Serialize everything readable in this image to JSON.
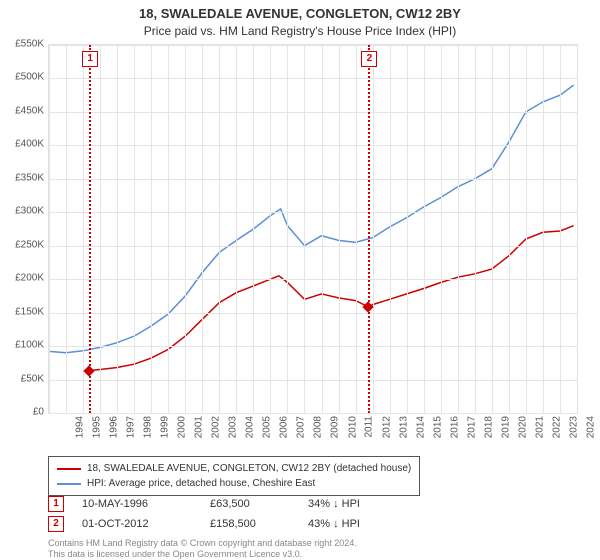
{
  "title": "18, SWALEDALE AVENUE, CONGLETON, CW12 2BY",
  "subtitle": "Price paid vs. HM Land Registry's House Price Index (HPI)",
  "title_fontsize": 13,
  "subtitle_fontsize": 12,
  "chart": {
    "type": "line",
    "background_color": "#ffffff",
    "grid_color": "#e5e5e5",
    "border_color": "#e0e0e0",
    "x_years": [
      1994,
      1995,
      1996,
      1997,
      1998,
      1999,
      2000,
      2001,
      2002,
      2003,
      2004,
      2005,
      2006,
      2007,
      2008,
      2009,
      2010,
      2011,
      2012,
      2013,
      2014,
      2015,
      2016,
      2017,
      2018,
      2019,
      2020,
      2021,
      2022,
      2023,
      2024
    ],
    "xlim": [
      1994,
      2025
    ],
    "ylim": [
      0,
      550000
    ],
    "ytick_step": 50000,
    "y_ticks": [
      0,
      50000,
      100000,
      150000,
      200000,
      250000,
      300000,
      350000,
      400000,
      450000,
      500000,
      550000
    ],
    "y_tick_labels": [
      "£0",
      "£50K",
      "£100K",
      "£150K",
      "£200K",
      "£250K",
      "£300K",
      "£350K",
      "£400K",
      "£450K",
      "£500K",
      "£550K"
    ],
    "label_fontsize": 10,
    "series": [
      {
        "name": "property_price",
        "label": "18, SWALEDALE AVENUE, CONGLETON, CW12 2BY (detached house)",
        "color": "#cc0000",
        "line_width": 1.5,
        "points": [
          [
            1996.36,
            63500
          ],
          [
            1997,
            65000
          ],
          [
            1998,
            68000
          ],
          [
            1999,
            73000
          ],
          [
            2000,
            82000
          ],
          [
            2001,
            95000
          ],
          [
            2002,
            115000
          ],
          [
            2003,
            140000
          ],
          [
            2004,
            165000
          ],
          [
            2005,
            180000
          ],
          [
            2006,
            190000
          ],
          [
            2007,
            200000
          ],
          [
            2007.5,
            205000
          ],
          [
            2008,
            195000
          ],
          [
            2009,
            170000
          ],
          [
            2010,
            178000
          ],
          [
            2011,
            172000
          ],
          [
            2012,
            168000
          ],
          [
            2012.75,
            158500
          ],
          [
            2013,
            162000
          ],
          [
            2014,
            170000
          ],
          [
            2015,
            178000
          ],
          [
            2016,
            186000
          ],
          [
            2017,
            195000
          ],
          [
            2018,
            203000
          ],
          [
            2019,
            208000
          ],
          [
            2020,
            215000
          ],
          [
            2021,
            235000
          ],
          [
            2022,
            260000
          ],
          [
            2023,
            270000
          ],
          [
            2024,
            272000
          ],
          [
            2024.8,
            280000
          ]
        ]
      },
      {
        "name": "hpi",
        "label": "HPI: Average price, detached house, Cheshire East",
        "color": "#5b8fd6",
        "line_width": 1.5,
        "points": [
          [
            1994,
            92000
          ],
          [
            1995,
            90000
          ],
          [
            1996,
            93000
          ],
          [
            1997,
            98000
          ],
          [
            1998,
            105000
          ],
          [
            1999,
            115000
          ],
          [
            2000,
            130000
          ],
          [
            2001,
            148000
          ],
          [
            2002,
            175000
          ],
          [
            2003,
            210000
          ],
          [
            2004,
            240000
          ],
          [
            2005,
            258000
          ],
          [
            2006,
            275000
          ],
          [
            2007,
            295000
          ],
          [
            2007.6,
            305000
          ],
          [
            2008,
            280000
          ],
          [
            2009,
            250000
          ],
          [
            2010,
            265000
          ],
          [
            2011,
            258000
          ],
          [
            2012,
            255000
          ],
          [
            2013,
            262000
          ],
          [
            2014,
            278000
          ],
          [
            2015,
            292000
          ],
          [
            2016,
            308000
          ],
          [
            2017,
            322000
          ],
          [
            2018,
            338000
          ],
          [
            2019,
            350000
          ],
          [
            2020,
            365000
          ],
          [
            2021,
            405000
          ],
          [
            2022,
            450000
          ],
          [
            2023,
            465000
          ],
          [
            2024,
            475000
          ],
          [
            2024.8,
            490000
          ]
        ]
      }
    ],
    "sale_markers": [
      {
        "num": "1",
        "x": 1996.36,
        "y": 63500,
        "line_color": "#cc0000"
      },
      {
        "num": "2",
        "x": 2012.75,
        "y": 158500,
        "line_color": "#cc0000"
      }
    ]
  },
  "legend": {
    "border_color": "#555555",
    "fontsize": 10
  },
  "sales_table": {
    "rows": [
      {
        "num": "1",
        "date": "10-MAY-1996",
        "price": "£63,500",
        "vs_hpi": "34% ↓ HPI"
      },
      {
        "num": "2",
        "date": "01-OCT-2012",
        "price": "£158,500",
        "vs_hpi": "43% ↓ HPI"
      }
    ],
    "fontsize": 11,
    "marker_border_color": "#cc0000"
  },
  "footnote": {
    "line1": "Contains HM Land Registry data © Crown copyright and database right 2024.",
    "line2": "This data is licensed under the Open Government Licence v3.0.",
    "fontsize": 9,
    "color": "#888888"
  }
}
